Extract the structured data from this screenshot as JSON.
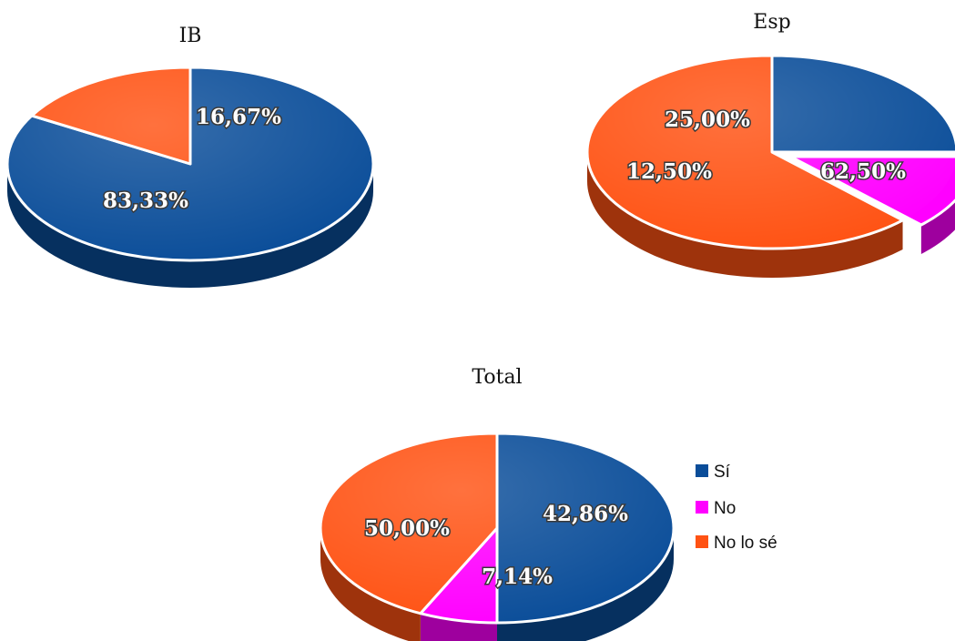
{
  "chart_data": [
    {
      "type": "pie",
      "title": "IB",
      "series": [
        {
          "category": "Sí",
          "value": 83.33,
          "label": "83,33%"
        },
        {
          "category": "No lo sé",
          "value": 16.67,
          "label": "16,67%"
        }
      ]
    },
    {
      "type": "pie",
      "title": "Esp",
      "series": [
        {
          "category": "Sí",
          "value": 25.0,
          "label": "25,00%"
        },
        {
          "category": "No",
          "value": 12.5,
          "label": "12,50%"
        },
        {
          "category": "No lo sé",
          "value": 62.5,
          "label": "62,50%"
        }
      ]
    },
    {
      "type": "pie",
      "title": "Total",
      "series": [
        {
          "category": "Sí",
          "value": 50.0,
          "label": "50,00%"
        },
        {
          "category": "No",
          "value": 7.14,
          "label": "7,14%"
        },
        {
          "category": "No lo sé",
          "value": 42.86,
          "label": "42,86%"
        }
      ]
    }
  ],
  "legend": {
    "placement": "right of Total chart",
    "items": [
      {
        "label": "Sí",
        "color": "#0a4d99"
      },
      {
        "label": "No",
        "color": "#ff00ff"
      },
      {
        "label": "No lo sé",
        "color": "#ff5213"
      }
    ]
  },
  "colors": {
    "Sí": "#0a4d99",
    "No": "#ff00ff",
    "No lo sé": "#ff5213"
  }
}
